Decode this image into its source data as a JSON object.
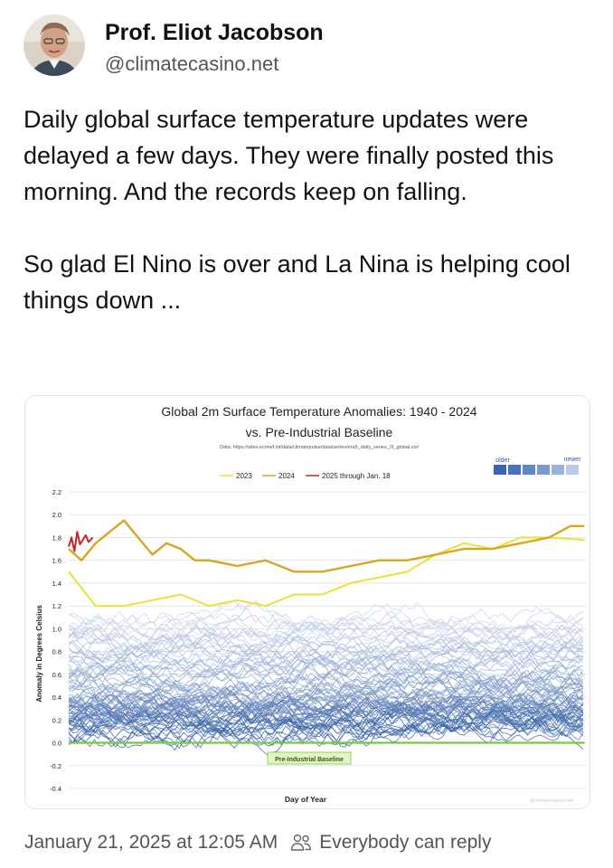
{
  "author": {
    "name": "Prof. Eliot Jacobson",
    "handle": "@climatecasino.net"
  },
  "post": {
    "paragraphs": [
      "Daily global surface temperature updates were delayed a few days. They were finally posted this morning. And the records keep on falling.",
      "So glad El Nino is over and La Nina is helping cool things down ..."
    ],
    "timestamp": "January 21, 2025 at 12:05 AM",
    "reply_setting": "Everybody can reply"
  },
  "colors": {
    "y2023": "#e8e23a",
    "y2024": "#d9a522",
    "y2025": "#c0282b",
    "baseline": "#7ac943",
    "historic_old": "#1f4f9a",
    "historic_new": "#c7d3ea"
  },
  "chart_data": {
    "type": "line",
    "title": "Global 2m Surface Temperature Anomalies: 1940 - 2024",
    "subtitle": "vs. Pre-Industrial Baseline",
    "source": "Data: https://sites.ecmwf.int/data/climatepulse/data/series/era5_daily_series_2t_global.csv",
    "xlabel": "Day of Year",
    "ylabel": "Anomaly in Degrees Celsius",
    "ylim": [
      -0.4,
      2.2
    ],
    "yticks": [
      "2.2",
      "2.0",
      "1.8",
      "1.6",
      "1.4",
      "1.2",
      "1.0",
      "0.8",
      "0.6",
      "0.4",
      "0.2",
      "0.0",
      "-0.2",
      "-0.4"
    ],
    "xlim": [
      1,
      366
    ],
    "grid": true,
    "legend": {
      "placement": "top-center",
      "entries": [
        "2023",
        "2024",
        "2025 through Jan. 18"
      ]
    },
    "gradient_legend": {
      "start": "older",
      "end": "newer"
    },
    "baseline_label": "Pre-Industrial Baseline",
    "watermark": "@climatecasino.net",
    "series": [
      {
        "name": "2023",
        "x": [
          1,
          20,
          40,
          60,
          80,
          100,
          120,
          140,
          160,
          180,
          200,
          220,
          240,
          260,
          280,
          300,
          320,
          340,
          365
        ],
        "values": [
          1.5,
          1.2,
          1.2,
          1.25,
          1.3,
          1.2,
          1.25,
          1.2,
          1.3,
          1.3,
          1.4,
          1.45,
          1.5,
          1.65,
          1.75,
          1.7,
          1.8,
          1.8,
          1.78
        ]
      },
      {
        "name": "2024",
        "x": [
          1,
          10,
          20,
          30,
          40,
          50,
          60,
          70,
          80,
          90,
          100,
          120,
          140,
          160,
          180,
          200,
          220,
          240,
          260,
          280,
          300,
          320,
          340,
          355,
          365
        ],
        "values": [
          1.7,
          1.6,
          1.75,
          1.85,
          1.95,
          1.8,
          1.65,
          1.75,
          1.7,
          1.6,
          1.6,
          1.55,
          1.6,
          1.5,
          1.5,
          1.55,
          1.6,
          1.6,
          1.65,
          1.7,
          1.7,
          1.75,
          1.8,
          1.9,
          1.9
        ]
      },
      {
        "name": "2025 through Jan. 18",
        "x": [
          1,
          3,
          5,
          7,
          9,
          11,
          13,
          15,
          18
        ],
        "values": [
          1.72,
          1.8,
          1.68,
          1.85,
          1.74,
          1.78,
          1.82,
          1.76,
          1.8
        ]
      },
      {
        "name": "Pre-Industrial Baseline",
        "x": [
          1,
          365
        ],
        "values": [
          0.0,
          0.0
        ]
      }
    ]
  }
}
